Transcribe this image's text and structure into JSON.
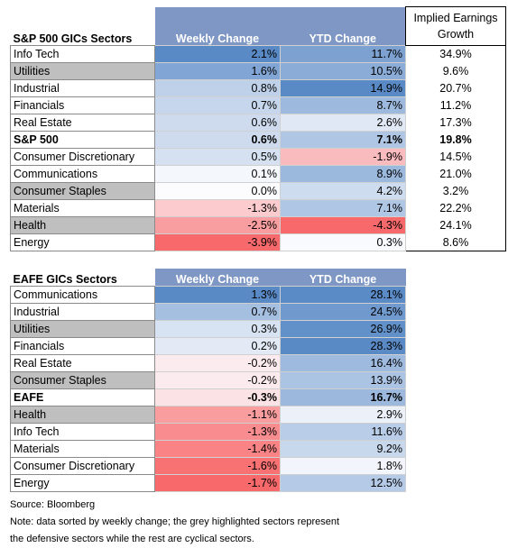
{
  "chart_data": [
    {
      "type": "table",
      "columns": [
        "S&P 500 GICs Sectors",
        "Weekly Change",
        "YTD Change",
        "Implied Earnings Growth"
      ],
      "rows": [
        {
          "sector": "Info Tech",
          "weekly": "2.1%",
          "ytd": "11.7%",
          "ieg": "34.9%",
          "w": 2.1,
          "y": 11.7,
          "defensive": false,
          "bold": false
        },
        {
          "sector": "Utilities",
          "weekly": "1.6%",
          "ytd": "10.5%",
          "ieg": "9.6%",
          "w": 1.6,
          "y": 10.5,
          "defensive": true,
          "bold": false
        },
        {
          "sector": "Industrial",
          "weekly": "0.8%",
          "ytd": "14.9%",
          "ieg": "20.7%",
          "w": 0.8,
          "y": 14.9,
          "defensive": false,
          "bold": false
        },
        {
          "sector": "Financials",
          "weekly": "0.7%",
          "ytd": "8.7%",
          "ieg": "11.2%",
          "w": 0.7,
          "y": 8.7,
          "defensive": false,
          "bold": false
        },
        {
          "sector": "Real Estate",
          "weekly": "0.6%",
          "ytd": "2.6%",
          "ieg": "17.3%",
          "w": 0.6,
          "y": 2.6,
          "defensive": false,
          "bold": false
        },
        {
          "sector": "S&P 500",
          "weekly": "0.6%",
          "ytd": "7.1%",
          "ieg": "19.8%",
          "w": 0.6,
          "y": 7.1,
          "defensive": false,
          "bold": true
        },
        {
          "sector": "Consumer Discretionary",
          "weekly": "0.5%",
          "ytd": "-1.9%",
          "ieg": "14.5%",
          "w": 0.5,
          "y": -1.9,
          "defensive": false,
          "bold": false
        },
        {
          "sector": "Communications",
          "weekly": "0.1%",
          "ytd": "8.9%",
          "ieg": "21.0%",
          "w": 0.1,
          "y": 8.9,
          "defensive": false,
          "bold": false
        },
        {
          "sector": "Consumer Staples",
          "weekly": "0.0%",
          "ytd": "4.2%",
          "ieg": "3.2%",
          "w": 0.0,
          "y": 4.2,
          "defensive": true,
          "bold": false
        },
        {
          "sector": "Materials",
          "weekly": "-1.3%",
          "ytd": "7.1%",
          "ieg": "22.2%",
          "w": -1.3,
          "y": 7.1,
          "defensive": false,
          "bold": false
        },
        {
          "sector": "Health",
          "weekly": "-2.5%",
          "ytd": "-4.3%",
          "ieg": "24.1%",
          "w": -2.5,
          "y": -4.3,
          "defensive": true,
          "bold": false
        },
        {
          "sector": "Energy",
          "weekly": "-3.9%",
          "ytd": "0.3%",
          "ieg": "8.6%",
          "w": -3.9,
          "y": 0.3,
          "defensive": false,
          "bold": false
        }
      ]
    },
    {
      "type": "table",
      "columns": [
        "EAFE GICs Sectors",
        "Weekly Change",
        "YTD Change"
      ],
      "rows": [
        {
          "sector": "Communications",
          "weekly": "1.3%",
          "ytd": "28.1%",
          "w": 1.3,
          "y": 28.1,
          "defensive": false,
          "bold": false
        },
        {
          "sector": "Industrial",
          "weekly": "0.7%",
          "ytd": "24.5%",
          "w": 0.7,
          "y": 24.5,
          "defensive": false,
          "bold": false
        },
        {
          "sector": "Utilities",
          "weekly": "0.3%",
          "ytd": "26.9%",
          "w": 0.3,
          "y": 26.9,
          "defensive": true,
          "bold": false
        },
        {
          "sector": "Financials",
          "weekly": "0.2%",
          "ytd": "28.3%",
          "w": 0.2,
          "y": 28.3,
          "defensive": false,
          "bold": false
        },
        {
          "sector": "Real Estate",
          "weekly": "-0.2%",
          "ytd": "16.4%",
          "w": -0.2,
          "y": 16.4,
          "defensive": false,
          "bold": false
        },
        {
          "sector": "Consumer Staples",
          "weekly": "-0.2%",
          "ytd": "13.9%",
          "w": -0.2,
          "y": 13.9,
          "defensive": true,
          "bold": false
        },
        {
          "sector": "EAFE",
          "weekly": "-0.3%",
          "ytd": "16.7%",
          "w": -0.3,
          "y": 16.7,
          "defensive": false,
          "bold": true
        },
        {
          "sector": "Health",
          "weekly": "-1.1%",
          "ytd": "2.9%",
          "w": -1.1,
          "y": 2.9,
          "defensive": true,
          "bold": false
        },
        {
          "sector": "Info Tech",
          "weekly": "-1.3%",
          "ytd": "11.6%",
          "w": -1.3,
          "y": 11.6,
          "defensive": false,
          "bold": false
        },
        {
          "sector": "Materials",
          "weekly": "-1.4%",
          "ytd": "9.2%",
          "w": -1.4,
          "y": 9.2,
          "defensive": false,
          "bold": false
        },
        {
          "sector": "Consumer Discretionary",
          "weekly": "-1.6%",
          "ytd": "1.8%",
          "w": -1.6,
          "y": 1.8,
          "defensive": false,
          "bold": false
        },
        {
          "sector": "Energy",
          "weekly": "-1.7%",
          "ytd": "12.5%",
          "w": -1.7,
          "y": 12.5,
          "defensive": false,
          "bold": false
        }
      ]
    }
  ],
  "sp_header": {
    "sector": "S&P 500 GICs Sectors",
    "weekly": "Weekly Change",
    "ytd": "YTD Change",
    "ieg": "Implied Earnings Growth"
  },
  "eafe_header": {
    "sector": "EAFE GICs Sectors",
    "weekly": "Weekly Change",
    "ytd": "YTD Change"
  },
  "notes": {
    "source": "Source: Bloomberg",
    "note_line1": "Note: data sorted by weekly change; the grey highlighted sectors represent",
    "note_line2": "the defensive sectors while the rest are cyclical sectors."
  },
  "colors": {
    "positive": "#5a8ac6",
    "negative": "#f8696b",
    "neutral": "#fcfcff",
    "defensive_grey": "#bfbfbf",
    "header_blue": "#7f97c4"
  }
}
